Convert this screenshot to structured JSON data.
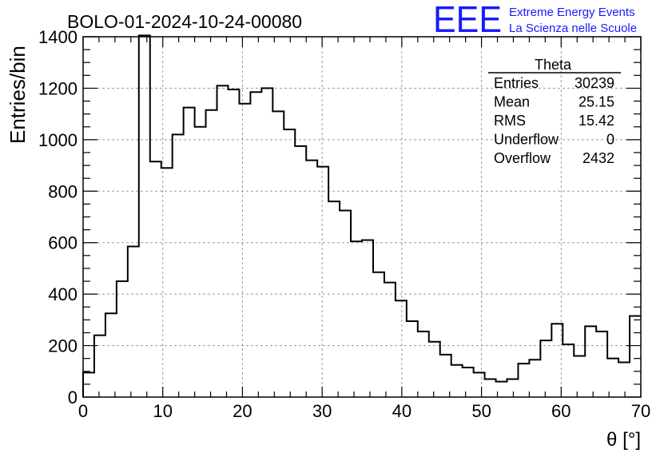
{
  "header": {
    "run_title": "BOLO-01-2024-10-24-00080",
    "logo_letters": "EEE",
    "logo_line1": "Extreme Energy Events",
    "logo_line2": "La Scienza nelle Scuole",
    "logo_color": "#1a1aff"
  },
  "stats_box": {
    "title": "Theta",
    "rows": [
      {
        "label": "Entries",
        "value": "30239"
      },
      {
        "label": "Mean",
        "value": "25.15"
      },
      {
        "label": "RMS",
        "value": "15.42"
      },
      {
        "label": "Underflow",
        "value": "0"
      },
      {
        "label": "Overflow",
        "value": "2432"
      }
    ]
  },
  "chart_data": {
    "type": "histogram",
    "xlabel": "θ [°]",
    "ylabel": "Entries/bin",
    "xlim": [
      0,
      70
    ],
    "ylim": [
      0,
      1400
    ],
    "grid": true,
    "bin_width": 1.4,
    "x_ticks": [
      0,
      10,
      20,
      30,
      40,
      50,
      60,
      70
    ],
    "y_ticks": [
      0,
      200,
      400,
      600,
      800,
      1000,
      1200,
      1400
    ],
    "bin_edges_start": 0,
    "values": [
      95,
      240,
      325,
      450,
      585,
      1405,
      915,
      890,
      1020,
      1125,
      1050,
      1115,
      1210,
      1195,
      1140,
      1185,
      1200,
      1110,
      1040,
      975,
      920,
      895,
      760,
      725,
      605,
      610,
      485,
      445,
      375,
      295,
      255,
      215,
      165,
      125,
      115,
      95,
      70,
      60,
      70,
      130,
      145,
      220,
      285,
      205,
      160,
      275,
      255,
      150,
      135,
      315
    ]
  }
}
